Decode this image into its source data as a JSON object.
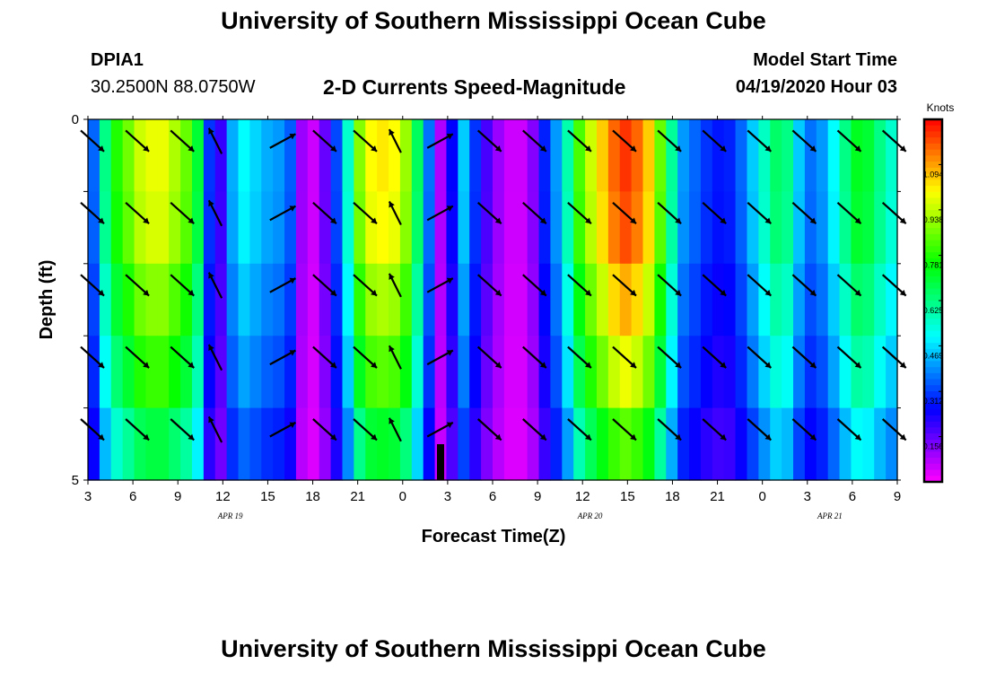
{
  "header": {
    "title": "University of Southern Mississippi Ocean Cube",
    "station_id": "DPIA1",
    "station_location": "30.2500N 88.0750W",
    "subtitle": "2-D Currents Speed-Magnitude",
    "model_label": "Model Start Time",
    "model_time": "04/19/2020 Hour 03"
  },
  "footer": {
    "title": "University of Southern Mississippi Ocean Cube"
  },
  "chart_data": {
    "type": "heatmap",
    "title": "2-D Currents Speed-Magnitude",
    "xlabel": "Forecast Time(Z)",
    "ylabel": "Depth (ft)",
    "colorbar_label": "Knots",
    "colorbar_ticks": [
      "1.094",
      "0.938",
      "0.781",
      "0.625",
      "0.469",
      "0.312",
      "0.156"
    ],
    "colorbar_values": [
      1.094,
      0.938,
      0.781,
      0.625,
      0.469,
      0.312,
      0.156
    ],
    "value_range": [
      0,
      1.25
    ],
    "x_tick_labels": [
      "3",
      "6",
      "9",
      "12",
      "15",
      "18",
      "21",
      "0",
      "3",
      "6",
      "9",
      "12",
      "15",
      "18",
      "21",
      "0",
      "3",
      "6",
      "9"
    ],
    "date_labels": [
      "APR 19",
      "APR 20",
      "APR 21"
    ],
    "y_tick_labels": [
      "0",
      "5"
    ],
    "ylim": [
      0,
      5
    ],
    "x_hours": [
      3,
      57
    ],
    "depth_rows": 5,
    "column_speeds": [
      0.35,
      0.62,
      0.78,
      0.86,
      0.95,
      0.98,
      0.98,
      0.92,
      0.85,
      0.7,
      0.3,
      0.2,
      0.42,
      0.5,
      0.46,
      0.42,
      0.4,
      0.34,
      0.1,
      0.05,
      0.15,
      0.32,
      0.55,
      0.88,
      1.0,
      1.02,
      1.0,
      0.9,
      0.66,
      0.36,
      0.08,
      0.25,
      0.45,
      0.3,
      0.18,
      0.1,
      0.05,
      0.05,
      0.12,
      0.28,
      0.4,
      0.58,
      0.82,
      0.95,
      1.05,
      1.15,
      1.2,
      1.15,
      1.05,
      0.85,
      0.6,
      0.4,
      0.35,
      0.3,
      0.27,
      0.28,
      0.35,
      0.45,
      0.56,
      0.65,
      0.62,
      0.45,
      0.36,
      0.4,
      0.5,
      0.62,
      0.72,
      0.7,
      0.62,
      0.55
    ],
    "row_factors": [
      1.0,
      0.98,
      0.9,
      0.82,
      0.7
    ],
    "vectors": {
      "times": [
        3.3,
        6.3,
        9.3,
        11.5,
        16.0,
        18.8,
        21.5,
        23.5,
        26.5,
        29.8,
        32.8,
        35.8,
        38.8,
        41.8,
        44.8,
        47.8,
        50.8,
        53.8,
        56.8
      ],
      "dx": [
        1,
        1,
        1,
        -0.55,
        1.1,
        1,
        1,
        -0.5,
        1.1,
        1,
        1,
        1,
        1,
        1,
        1,
        1,
        1,
        1,
        1
      ],
      "dy": [
        0.9,
        0.9,
        0.9,
        -1.1,
        -0.6,
        0.9,
        0.9,
        -1.0,
        -0.6,
        0.9,
        0.9,
        0.9,
        0.9,
        0.9,
        0.9,
        0.9,
        0.9,
        0.9,
        0.9
      ]
    }
  }
}
